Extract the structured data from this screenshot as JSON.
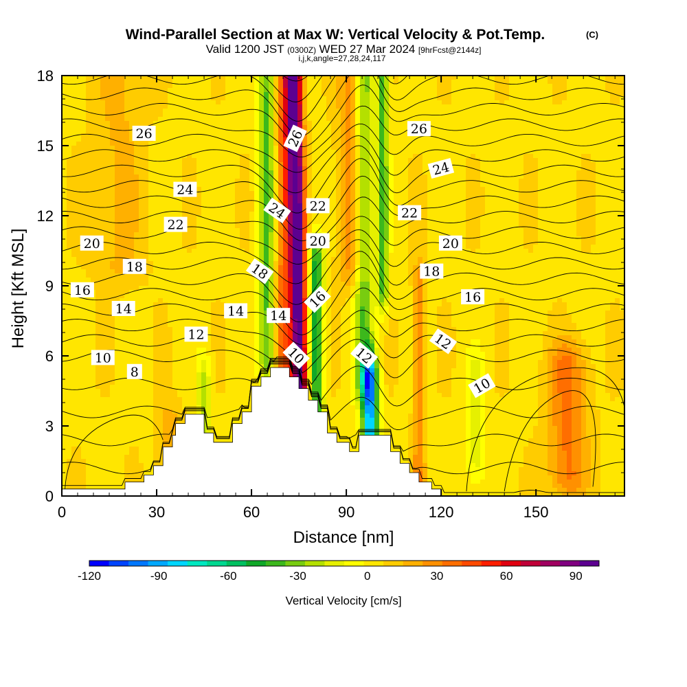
{
  "chart_data": {
    "type": "heatmap",
    "title": "Wind-Parallel Section at Max W: Vertical Velocity & Pot.Temp.",
    "title_mark": "(C)",
    "subtitle": {
      "valid": "Valid 1200 JST",
      "zulu": "(0300Z)",
      "date": "WED 27 Mar 2024",
      "forecast": "[9hrFcst@2144z]",
      "indices": "i,j,k,angle=27,28,24,117"
    },
    "xlabel": "Distance [nm]",
    "ylabel": "Height [Kft MSL]",
    "xlim": [
      0,
      178
    ],
    "ylim": [
      0,
      18
    ],
    "xticks": [
      "0",
      "30",
      "60",
      "90",
      "120",
      "150"
    ],
    "yticks": [
      "0",
      "3",
      "6",
      "9",
      "12",
      "15",
      "18"
    ],
    "colorbar": {
      "label": "Vertical Velocity [cm/s]",
      "range": [
        -120,
        100
      ],
      "ticks": [
        "-120",
        "-90",
        "-60",
        "-30",
        "0",
        "30",
        "60",
        "90"
      ],
      "colors": [
        "#0000ff",
        "#0044ff",
        "#0077ff",
        "#00a8ff",
        "#00d6ff",
        "#00e8c0",
        "#00d890",
        "#00c060",
        "#10a828",
        "#3cb81c",
        "#78cc10",
        "#b4e000",
        "#e6f000",
        "#ffff00",
        "#ffe600",
        "#ffcc00",
        "#ffb000",
        "#ff9000",
        "#ff6e00",
        "#ff4a00",
        "#ff1e00",
        "#e00010",
        "#c00038",
        "#a00060",
        "#800080",
        "#5c0090"
      ]
    },
    "terrain": [
      [
        0,
        0.3
      ],
      [
        20,
        0.3
      ],
      [
        20,
        0.6
      ],
      [
        26,
        0.6
      ],
      [
        26,
        0.9
      ],
      [
        29,
        0.9
      ],
      [
        29,
        1.3
      ],
      [
        32,
        1.3
      ],
      [
        32,
        2.1
      ],
      [
        35,
        2.1
      ],
      [
        35,
        2.6
      ],
      [
        36,
        2.6
      ],
      [
        36,
        3.1
      ],
      [
        39,
        3.1
      ],
      [
        39,
        3.5
      ],
      [
        45,
        3.5
      ],
      [
        45,
        2.7
      ],
      [
        48,
        2.7
      ],
      [
        48,
        2.3
      ],
      [
        54,
        2.3
      ],
      [
        54,
        3.1
      ],
      [
        57,
        3.1
      ],
      [
        57,
        3.6
      ],
      [
        60,
        3.6
      ],
      [
        60,
        4.7
      ],
      [
        63,
        4.7
      ],
      [
        63,
        5.1
      ],
      [
        66,
        5.1
      ],
      [
        66,
        5.5
      ],
      [
        72,
        5.5
      ],
      [
        72,
        5.1
      ],
      [
        75,
        5.1
      ],
      [
        75,
        4.6
      ],
      [
        78,
        4.6
      ],
      [
        78,
        4.1
      ],
      [
        81,
        4.1
      ],
      [
        81,
        3.6
      ],
      [
        84,
        3.6
      ],
      [
        84,
        2.7
      ],
      [
        87,
        2.7
      ],
      [
        87,
        2.3
      ],
      [
        91,
        2.3
      ],
      [
        91,
        1.9
      ],
      [
        94,
        1.9
      ],
      [
        94,
        2.6
      ],
      [
        104,
        2.6
      ],
      [
        104,
        1.9
      ],
      [
        107,
        1.9
      ],
      [
        107,
        1.4
      ],
      [
        110,
        1.4
      ],
      [
        110,
        1.0
      ],
      [
        113,
        1.0
      ],
      [
        113,
        0.6
      ],
      [
        117,
        0.6
      ],
      [
        117,
        0.3
      ],
      [
        120,
        0.3
      ],
      [
        120,
        0.0
      ],
      [
        178,
        0.0
      ]
    ],
    "wind_features": [
      {
        "x": 74.5,
        "z0": 3.5,
        "z1": 18,
        "w": 95,
        "sx": 2.4
      },
      {
        "x": 70.5,
        "z0": 3.5,
        "z1": 18,
        "w": 35,
        "sx": 3.5
      },
      {
        "x": 65,
        "z0": 6,
        "z1": 18,
        "w": -45,
        "sx": 2.6
      },
      {
        "x": 80.5,
        "z0": 3,
        "z1": 10,
        "w": -55,
        "sx": 2.2
      },
      {
        "x": 97.5,
        "z0": 2.5,
        "z1": 5,
        "w": -95,
        "sx": 2.4
      },
      {
        "x": 95.5,
        "z0": 5,
        "z1": 18,
        "w": -40,
        "sx": 3
      },
      {
        "x": 101.5,
        "z0": 9,
        "z1": 18,
        "w": -45,
        "sx": 1.8
      },
      {
        "x": 91.5,
        "z0": 10,
        "z1": 18,
        "w": 25,
        "sx": 4
      },
      {
        "x": 113,
        "z0": 0,
        "z1": 9,
        "w": 25,
        "sx": 1.8
      },
      {
        "x": 160,
        "z0": 1,
        "z1": 5.5,
        "w": 30,
        "sx": 6
      },
      {
        "x": 131,
        "z0": 1.5,
        "z1": 5,
        "w": -20,
        "sx": 3
      },
      {
        "x": 18,
        "z0": 10,
        "z1": 18,
        "w": 12,
        "sx": 8
      },
      {
        "x": 45,
        "z0": 3,
        "z1": 5,
        "w": -25,
        "sx": 2.2
      },
      {
        "x": 34,
        "z0": 0,
        "z1": 3,
        "w": 15,
        "sx": 4
      }
    ],
    "isentrope_levels": [
      "8",
      "10",
      "12",
      "14",
      "16",
      "18",
      "20",
      "22",
      "24",
      "26"
    ],
    "contour_labels": [
      {
        "text": "26",
        "x": 26,
        "y": 15.5,
        "rot": 0
      },
      {
        "text": "24",
        "x": 39,
        "y": 13.1,
        "rot": 0
      },
      {
        "text": "22",
        "x": 36,
        "y": 11.6,
        "rot": 0
      },
      {
        "text": "20",
        "x": 9.5,
        "y": 10.8,
        "rot": 0
      },
      {
        "text": "18",
        "x": 23,
        "y": 9.8,
        "rot": 0
      },
      {
        "text": "16",
        "x": 6.5,
        "y": 8.8,
        "rot": 0
      },
      {
        "text": "14",
        "x": 19.5,
        "y": 8.0,
        "rot": 0
      },
      {
        "text": "12",
        "x": 42.5,
        "y": 6.9,
        "rot": 0
      },
      {
        "text": "10",
        "x": 13,
        "y": 5.9,
        "rot": 0
      },
      {
        "text": "8",
        "x": 23,
        "y": 5.3,
        "rot": 0
      },
      {
        "text": "14",
        "x": 55,
        "y": 7.9,
        "rot": 0
      },
      {
        "text": "14",
        "x": 68.5,
        "y": 7.7,
        "rot": 0
      },
      {
        "text": "26",
        "x": 74,
        "y": 15.3,
        "rot": -65
      },
      {
        "text": "24",
        "x": 68,
        "y": 12.2,
        "rot": 35
      },
      {
        "text": "22",
        "x": 81,
        "y": 12.4,
        "rot": 0
      },
      {
        "text": "20",
        "x": 81,
        "y": 10.9,
        "rot": 0
      },
      {
        "text": "18",
        "x": 62.5,
        "y": 9.6,
        "rot": 35
      },
      {
        "text": "16",
        "x": 81,
        "y": 8.4,
        "rot": -45
      },
      {
        "text": "10",
        "x": 74,
        "y": 6.0,
        "rot": 45
      },
      {
        "text": "12",
        "x": 95.5,
        "y": 6.0,
        "rot": 40
      },
      {
        "text": "26",
        "x": 113,
        "y": 15.7,
        "rot": 0
      },
      {
        "text": "24",
        "x": 120,
        "y": 14.0,
        "rot": -15
      },
      {
        "text": "22",
        "x": 110,
        "y": 12.1,
        "rot": 0
      },
      {
        "text": "20",
        "x": 123,
        "y": 10.8,
        "rot": 0
      },
      {
        "text": "18",
        "x": 117,
        "y": 9.6,
        "rot": 0
      },
      {
        "text": "16",
        "x": 130,
        "y": 8.5,
        "rot": 0
      },
      {
        "text": "12",
        "x": 120.5,
        "y": 6.6,
        "rot": 35
      },
      {
        "text": "10",
        "x": 133,
        "y": 4.7,
        "rot": -30
      }
    ]
  }
}
